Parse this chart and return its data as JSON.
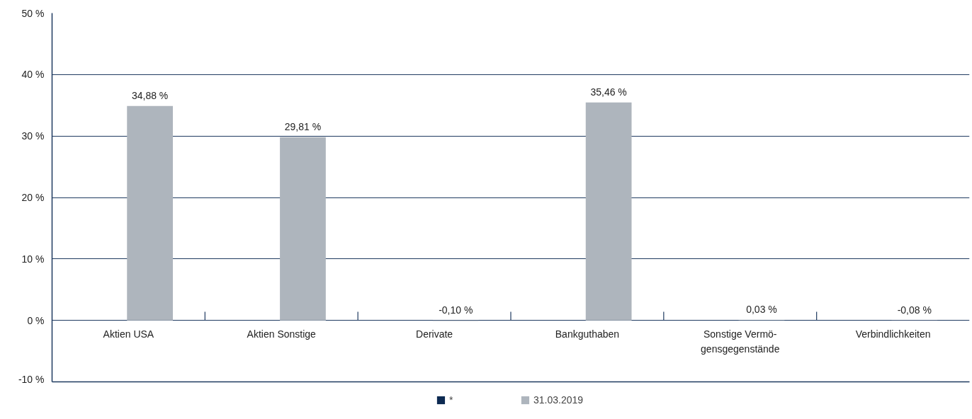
{
  "chart_data": {
    "type": "bar",
    "categories": [
      "Aktien USA",
      "Aktien Sonstige",
      "Derivate",
      "Bankguthaben",
      "Sonstige Vermö-\ngensgegenstände",
      "Verbindlichkeiten"
    ],
    "series": [
      {
        "name": "*",
        "color": "#0d2a52",
        "values": [
          null,
          null,
          null,
          null,
          null,
          null
        ]
      },
      {
        "name": "31.03.2019",
        "color": "#aeb5bd",
        "values": [
          34.88,
          29.81,
          -0.1,
          35.46,
          0.03,
          -0.08
        ],
        "value_labels": [
          "34,88 %",
          "29,81 %",
          "-0,10 %",
          "35,46 %",
          "0,03 %",
          "-0,08 %"
        ]
      }
    ],
    "ylim": [
      -10,
      50
    ],
    "yticks": [
      {
        "value": -10,
        "label": "-10 %"
      },
      {
        "value": 0,
        "label": "0 %"
      },
      {
        "value": 10,
        "label": "10 %"
      },
      {
        "value": 20,
        "label": "20 %"
      },
      {
        "value": 30,
        "label": "30 %"
      },
      {
        "value": 40,
        "label": "40 %"
      },
      {
        "value": 50,
        "label": "50 %"
      }
    ],
    "grid": "y",
    "legend": "bottom"
  }
}
